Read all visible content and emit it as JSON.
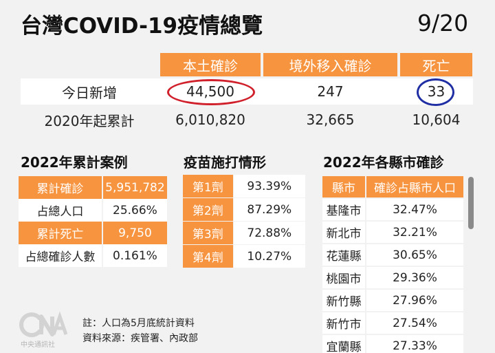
{
  "header": {
    "title": "台灣COVID-19疫情總覽",
    "date": "9/20"
  },
  "summary": {
    "columns": [
      "本土確診",
      "境外移入確診",
      "死亡"
    ],
    "rows": [
      {
        "label": "今日新增",
        "values": [
          "44,500",
          "247",
          "33"
        ]
      },
      {
        "label": "2020年起累計",
        "values": [
          "6,010,820",
          "32,665",
          "10,604"
        ]
      }
    ]
  },
  "cumulative_2022": {
    "title": "2022年累計案例",
    "rows": [
      {
        "label": "累計確診",
        "value": "5,951,782"
      },
      {
        "label": "占總人口",
        "value": "25.66%"
      },
      {
        "label": "累計死亡",
        "value": "9,750"
      },
      {
        "label": "占總確診人數",
        "value": "0.161%"
      }
    ]
  },
  "vaccine": {
    "title": "疫苗施打情形",
    "rows": [
      {
        "label": "第1劑",
        "value": "93.39%"
      },
      {
        "label": "第2劑",
        "value": "87.29%"
      },
      {
        "label": "第3劑",
        "value": "72.88%"
      },
      {
        "label": "第4劑",
        "value": "10.27%"
      }
    ]
  },
  "counties_2022": {
    "title": "2022年各縣市確診",
    "columns": [
      "縣市",
      "確診占縣市人口"
    ],
    "rows": [
      {
        "name": "基隆市",
        "value": "32.47%"
      },
      {
        "name": "新北市",
        "value": "32.21%"
      },
      {
        "name": "花蓮縣",
        "value": "30.65%"
      },
      {
        "name": "桃園市",
        "value": "29.36%"
      },
      {
        "name": "新竹縣",
        "value": "27.96%"
      },
      {
        "name": "新竹市",
        "value": "27.54%"
      },
      {
        "name": "宜蘭縣",
        "value": "27.33%"
      }
    ]
  },
  "notes": {
    "line1": "註：人口為5月底統計資料",
    "line2": "資料來源：疾管署、內政部"
  },
  "logo": {
    "text": "CNA",
    "caption": "中央通訊社"
  },
  "colors": {
    "accent": "#f7943f",
    "circle_red": "#d0202b",
    "circle_blue": "#1f2fa3"
  }
}
